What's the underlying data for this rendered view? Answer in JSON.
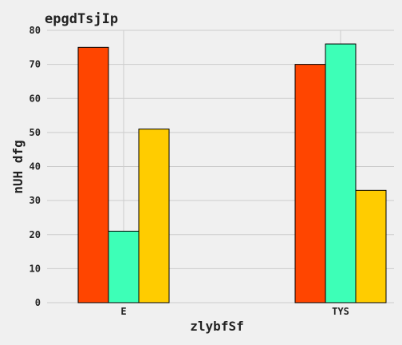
{
  "chart_data": {
    "type": "bar",
    "title": "epgdTsjIp",
    "xlabel": "zlybfSf",
    "ylabel": "nUH dfg",
    "categories": [
      "E",
      "TYS"
    ],
    "series": [
      {
        "values": [
          75,
          70
        ],
        "color": "#ff4500"
      },
      {
        "values": [
          21,
          76
        ],
        "color": "#3dffb7"
      },
      {
        "values": [
          51,
          33
        ],
        "color": "#ffcc00"
      }
    ],
    "ylim": [
      0,
      80
    ],
    "yticks": [
      0,
      10,
      20,
      30,
      40,
      50,
      60,
      70,
      80
    ],
    "grid": true,
    "background": "#f0f0f0",
    "grid_color": "#cccccc"
  }
}
